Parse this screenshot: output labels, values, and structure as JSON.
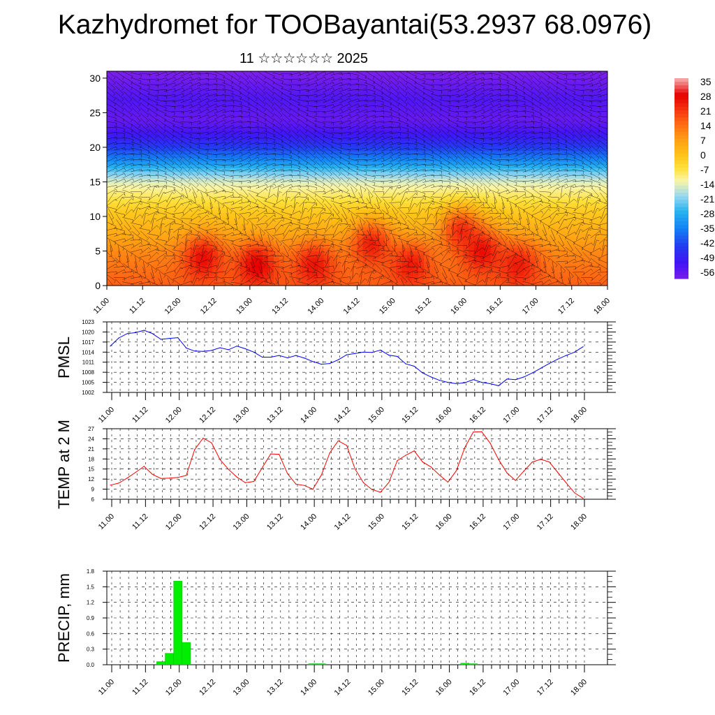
{
  "title": "Kazhydromet for TOOBayantai(53.2937 68.0976)",
  "subtitle": "11 ☆☆☆☆☆☆ 2025",
  "chart_data": [
    {
      "type": "heatmap",
      "name": "vertical cross-section",
      "xlabel": "",
      "ylabel": "",
      "x_ticks": [
        "11.00",
        "11.12",
        "12.00",
        "12.12",
        "13.00",
        "13.12",
        "14.00",
        "14.12",
        "15.00",
        "15.12",
        "16.00",
        "16.12",
        "17.00",
        "17.12",
        "18.00"
      ],
      "y_ticks": [
        0,
        5,
        10,
        15,
        20,
        25,
        30
      ],
      "ylim": [
        0,
        31
      ],
      "colorbar_labels": [
        "35",
        "28",
        "21",
        "14",
        "7",
        "0",
        "-7",
        "-14",
        "-21",
        "-28",
        "-35",
        "-42",
        "-49",
        "-56"
      ],
      "bands": [
        {
          "height": 0,
          "value": 16
        },
        {
          "height": 2,
          "value": 14
        },
        {
          "height": 5,
          "value": 10
        },
        {
          "height": 8,
          "value": 4
        },
        {
          "height": 11,
          "value": -2
        },
        {
          "height": 13,
          "value": -8
        },
        {
          "height": 15,
          "value": -14
        },
        {
          "height": 16.5,
          "value": -22
        },
        {
          "height": 18,
          "value": -32
        },
        {
          "height": 20,
          "value": -42
        },
        {
          "height": 22,
          "value": -50
        },
        {
          "height": 24,
          "value": -55
        },
        {
          "height": 27,
          "value": -52
        },
        {
          "height": 31,
          "value": -58
        }
      ],
      "warm_cells": [
        {
          "x": 1.35,
          "y": 4,
          "value": 28
        },
        {
          "x": 2.1,
          "y": 3,
          "value": 30
        },
        {
          "x": 2.9,
          "y": 3,
          "value": 27
        },
        {
          "x": 3.7,
          "y": 6,
          "value": 26
        },
        {
          "x": 4.25,
          "y": 3,
          "value": 26
        },
        {
          "x": 4.95,
          "y": 8,
          "value": 24
        },
        {
          "x": 5.25,
          "y": 5,
          "value": 28
        },
        {
          "x": 5.75,
          "y": 3,
          "value": 26
        }
      ],
      "grid": false
    },
    {
      "type": "line",
      "name": "PMSL",
      "ylabel": "PMSL",
      "color": "#0000ff",
      "ylim": [
        1002,
        1023
      ],
      "y_ticks": [
        1002,
        1005,
        1008,
        1011,
        1014,
        1017,
        1020,
        1023
      ],
      "x_ticks": [
        "11.00",
        "11.12",
        "12.00",
        "12.12",
        "13.00",
        "13.12",
        "14.00",
        "14.12",
        "15.00",
        "15.12",
        "16.00",
        "16.12",
        "17.00",
        "17.12",
        "18.00"
      ],
      "x_start_offset": -0.5,
      "x_step": 3,
      "values": [
        1015.8,
        1018.2,
        1019.5,
        1019.8,
        1020.5,
        1019.5,
        1017.8,
        1018.1,
        1018.3,
        1015.2,
        1014.3,
        1014.2,
        1014.5,
        1015.3,
        1014.7,
        1015.8,
        1015.0,
        1014.0,
        1012.5,
        1012.5,
        1013.0,
        1012.3,
        1013.0,
        1012.2,
        1011.2,
        1010.4,
        1010.6,
        1011.7,
        1013.2,
        1013.6,
        1014.0,
        1013.9,
        1014.6,
        1013.1,
        1012.7,
        1010.5,
        1009.8,
        1007.8,
        1006.6,
        1005.6,
        1005.0,
        1004.6,
        1004.9,
        1005.8,
        1005.0,
        1004.6,
        1004.0,
        1006.0,
        1005.8,
        1006.6,
        1007.8,
        1009.2,
        1010.6,
        1011.9,
        1013.0,
        1014.0,
        1015.6
      ]
    },
    {
      "type": "line",
      "name": "TEMP at 2 M",
      "ylabel": "TEMP at 2 M",
      "color": "#ff0000",
      "ylim": [
        6,
        27
      ],
      "y_ticks": [
        6,
        9,
        12,
        15,
        18,
        21,
        24,
        27
      ],
      "x_ticks": [
        "11.00",
        "11.12",
        "12.00",
        "12.12",
        "13.00",
        "13.12",
        "14.00",
        "14.12",
        "15.00",
        "15.12",
        "16.00",
        "16.12",
        "17.00",
        "17.12",
        "18.00"
      ],
      "x_start_offset": -0.5,
      "x_step": 3,
      "values": [
        10.2,
        10.8,
        12.3,
        14.0,
        15.8,
        13.4,
        12.2,
        12.3,
        12.5,
        13.1,
        20.8,
        24.2,
        22.8,
        17.8,
        14.9,
        12.6,
        10.9,
        11.3,
        15.4,
        19.5,
        19.4,
        13.6,
        10.5,
        10.1,
        9.0,
        13.2,
        19.8,
        23.4,
        22.0,
        15.0,
        10.9,
        8.9,
        8.1,
        11.0,
        17.5,
        19.1,
        20.4,
        17.1,
        15.6,
        13.2,
        11.1,
        14.5,
        21.4,
        26.0,
        26.1,
        22.7,
        17.8,
        13.8,
        11.6,
        14.4,
        17.1,
        17.9,
        17.1,
        14.0,
        10.9,
        7.9,
        6.3
      ]
    },
    {
      "type": "bar",
      "name": "PRECIP, mm",
      "ylabel": "PRECIP, mm",
      "color": "#00ee00",
      "ylim": [
        0,
        1.8
      ],
      "y_ticks": [
        "0.0",
        "0.3",
        "0.6",
        "0.9",
        "1.2",
        "1.5",
        "1.8"
      ],
      "x_ticks": [
        "11.00",
        "11.12",
        "12.00",
        "12.12",
        "13.00",
        "13.12",
        "14.00",
        "14.12",
        "15.00",
        "15.12",
        "16.00",
        "16.12",
        "17.00",
        "17.12",
        "18.00"
      ],
      "x_start_offset": -0.5,
      "x_step": 3,
      "values": [
        0,
        0,
        0,
        0,
        0,
        0,
        0.06,
        0.22,
        1.61,
        0.43,
        0,
        0,
        0,
        0,
        0,
        0,
        0,
        0,
        0,
        0,
        0,
        0,
        0,
        0,
        0.02,
        0.02,
        0,
        0,
        0,
        0,
        0,
        0,
        0,
        0,
        0,
        0,
        0,
        0,
        0,
        0,
        0,
        0,
        0.03,
        0.02,
        0,
        0,
        0,
        0,
        0,
        0,
        0,
        0,
        0,
        0,
        0,
        0,
        0
      ]
    }
  ]
}
